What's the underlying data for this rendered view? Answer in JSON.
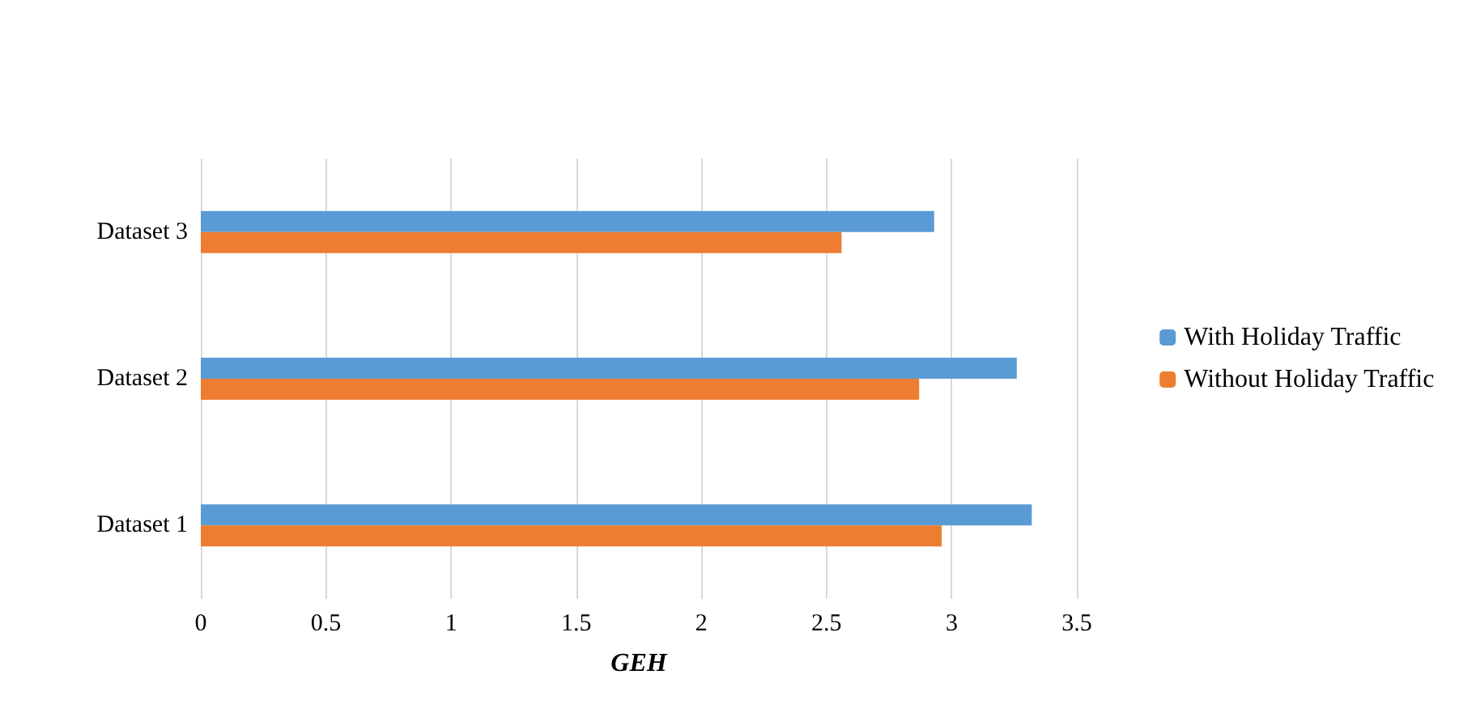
{
  "chart_data": {
    "type": "bar",
    "orientation": "horizontal",
    "xlabel": "GEH",
    "categories": [
      "Dataset 3",
      "Dataset 2",
      "Dataset 1"
    ],
    "series": [
      {
        "name": "With Holiday Traffic",
        "color": "#5b9bd5",
        "values": [
          2.93,
          3.26,
          3.32
        ]
      },
      {
        "name": "Without Holiday Traffic",
        "color": "#ed7d31",
        "values": [
          2.56,
          2.87,
          2.96
        ]
      }
    ],
    "xlim": [
      0,
      3.5
    ],
    "xticks": [
      0,
      0.5,
      1,
      1.5,
      2,
      2.5,
      3,
      3.5
    ],
    "grid": "x",
    "legend": "right"
  }
}
